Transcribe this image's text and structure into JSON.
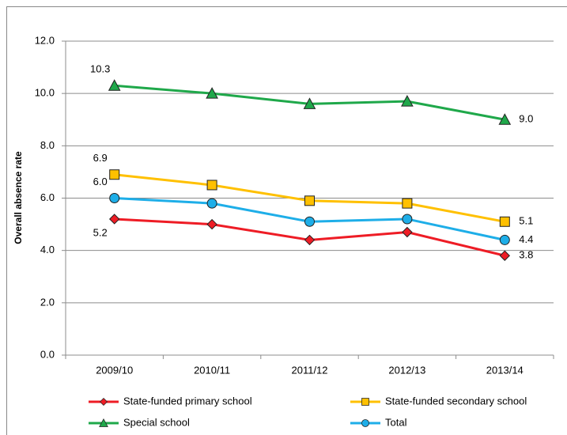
{
  "chart_data": {
    "type": "line",
    "y_label": "Overall absence rate",
    "categories": [
      "2009/10",
      "2010/11",
      "2011/12",
      "2012/13",
      "2013/14"
    ],
    "series": [
      {
        "name": "State-funded primary school",
        "color": "#ee1c25",
        "marker": "diamond",
        "values": [
          5.2,
          5.0,
          4.4,
          4.7,
          3.8
        ],
        "value_labels": [
          "5.2",
          null,
          null,
          null,
          "3.8"
        ]
      },
      {
        "name": "State-funded secondary school",
        "color": "#ffc000",
        "marker": "square",
        "values": [
          6.9,
          6.5,
          5.9,
          5.8,
          5.1
        ],
        "value_labels": [
          "6.9",
          null,
          null,
          null,
          "5.1"
        ]
      },
      {
        "name": "Special school",
        "color": "#1fa84a",
        "marker": "triangle",
        "values": [
          10.3,
          10.0,
          9.6,
          9.7,
          9.0
        ],
        "value_labels": [
          "10.3",
          null,
          null,
          null,
          "9.0"
        ]
      },
      {
        "name": "Total",
        "color": "#1eaee8",
        "marker": "circle",
        "values": [
          6.0,
          5.8,
          5.1,
          5.2,
          4.4
        ],
        "value_labels": [
          "6.0",
          null,
          null,
          null,
          "4.4"
        ]
      }
    ],
    "ylim": [
      0,
      12
    ],
    "yticks": [
      {
        "value": 0,
        "label": "0.0"
      },
      {
        "value": 2,
        "label": "2.0"
      },
      {
        "value": 4,
        "label": "4.0"
      },
      {
        "value": 6,
        "label": "6.0"
      },
      {
        "value": 8,
        "label": "8.0"
      },
      {
        "value": 10,
        "label": "10.0"
      },
      {
        "value": 12,
        "label": "12.0"
      }
    ],
    "grid": true
  }
}
